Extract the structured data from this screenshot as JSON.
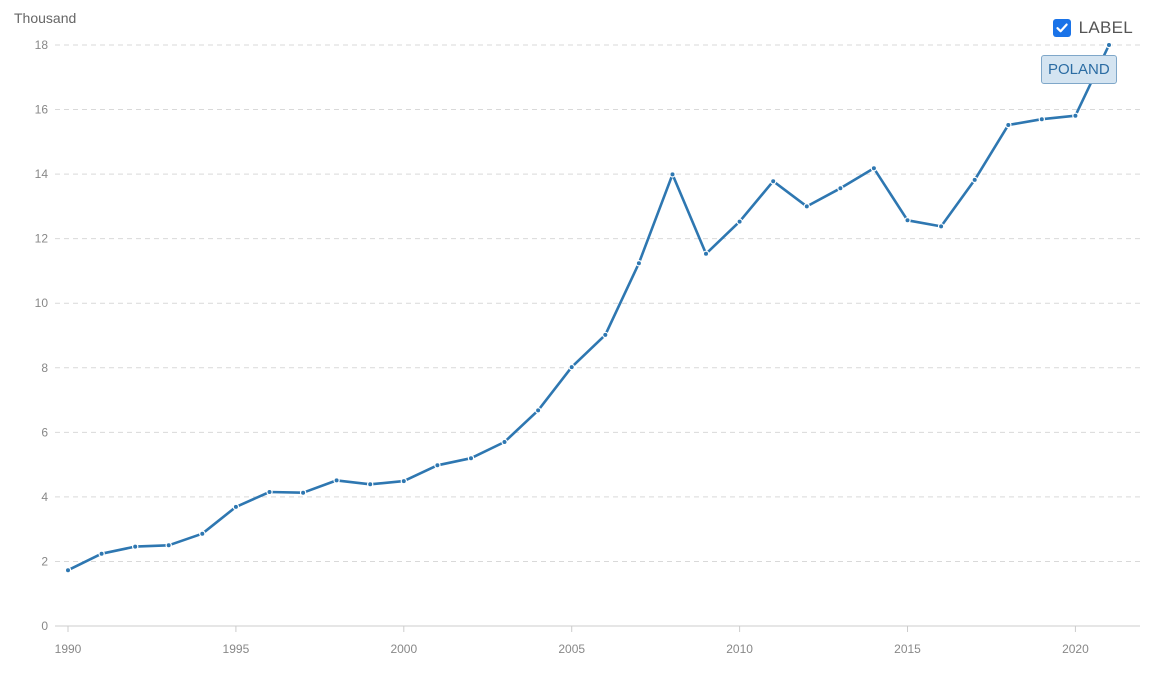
{
  "header": {
    "unit_label": "Thousand",
    "toggle_label": "LABEL",
    "toggle_checked": true
  },
  "colors": {
    "series": "#2e77b1",
    "grid": "#d9d9d9",
    "checkbox": "#1a73e8"
  },
  "chart_data": {
    "type": "line",
    "ylabel": "Thousand",
    "ylim": [
      0,
      18
    ],
    "yticks": [
      0,
      2,
      4,
      6,
      8,
      10,
      12,
      14,
      16,
      18
    ],
    "xlim": [
      1990,
      2021
    ],
    "xticks": [
      1990,
      1995,
      2000,
      2005,
      2010,
      2015,
      2020
    ],
    "grid": true,
    "series": [
      {
        "name": "POLAND",
        "x": [
          1990,
          1991,
          1992,
          1993,
          1994,
          1995,
          1996,
          1997,
          1998,
          1999,
          2000,
          2001,
          2002,
          2003,
          2004,
          2005,
          2006,
          2007,
          2008,
          2009,
          2010,
          2011,
          2012,
          2013,
          2014,
          2015,
          2016,
          2017,
          2018,
          2019,
          2020,
          2021
        ],
        "values": [
          1.73,
          2.24,
          2.46,
          2.5,
          2.86,
          3.69,
          4.15,
          4.13,
          4.51,
          4.39,
          4.49,
          4.98,
          5.2,
          5.7,
          6.68,
          8.02,
          9.02,
          11.24,
          13.99,
          11.53,
          12.53,
          13.78,
          13.0,
          13.56,
          14.18,
          12.57,
          12.38,
          13.82,
          15.52,
          15.7,
          15.81,
          18.0
        ]
      }
    ]
  }
}
